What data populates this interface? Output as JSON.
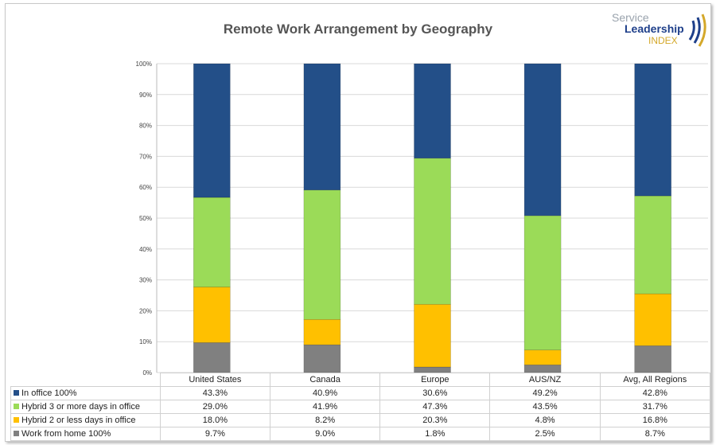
{
  "logo": {
    "line1": "Service",
    "line2": "Leadership",
    "line3": "INDEX"
  },
  "chart_data": {
    "type": "bar",
    "stacked": true,
    "percent_stacked": true,
    "title": "Remote Work Arrangement by Geography",
    "categories": [
      "United States",
      "Canada",
      "Europe",
      "AUS/NZ",
      "Avg, All Regions"
    ],
    "ylim": [
      0,
      100
    ],
    "yticks": [
      "0%",
      "10%",
      "20%",
      "30%",
      "40%",
      "50%",
      "60%",
      "70%",
      "80%",
      "90%",
      "100%"
    ],
    "grid": true,
    "legend": "data-table",
    "series": [
      {
        "name": "Work from home 100%",
        "color": "#808080",
        "values": [
          9.7,
          9.0,
          1.8,
          2.5,
          8.7
        ],
        "labels": [
          "9.7%",
          "9.0%",
          "1.8%",
          "2.5%",
          "8.7%"
        ]
      },
      {
        "name": "Hybrid 2 or less days in office",
        "color": "#FFC000",
        "values": [
          18.0,
          8.2,
          20.3,
          4.8,
          16.8
        ],
        "labels": [
          "18.0%",
          "8.2%",
          "20.3%",
          "4.8%",
          "16.8%"
        ]
      },
      {
        "name": "Hybrid 3 or more days in office",
        "color": "#9BDB58",
        "values": [
          29.0,
          41.9,
          47.3,
          43.5,
          31.7
        ],
        "labels": [
          "29.0%",
          "41.9%",
          "47.3%",
          "43.5%",
          "31.7%"
        ]
      },
      {
        "name": "In office 100%",
        "color": "#234F88",
        "values": [
          43.3,
          40.9,
          30.6,
          49.2,
          42.8
        ],
        "labels": [
          "43.3%",
          "40.9%",
          "30.6%",
          "49.2%",
          "42.8%"
        ]
      }
    ]
  }
}
